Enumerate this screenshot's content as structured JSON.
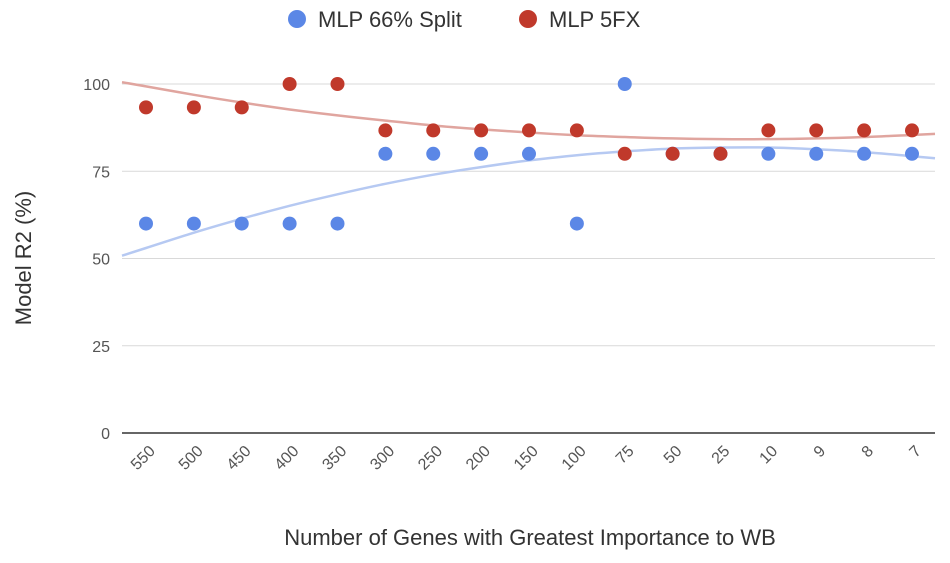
{
  "chart_data": {
    "type": "scatter",
    "title": "",
    "xlabel": "Number of Genes with Greatest Importance to WB",
    "ylabel": "Model R2 (%)",
    "ylim": [
      0,
      100
    ],
    "yticks": [
      0,
      25,
      50,
      75,
      100
    ],
    "legend_position": "top-center",
    "grid": true,
    "categories": [
      "550",
      "500",
      "450",
      "400",
      "350",
      "300",
      "250",
      "200",
      "150",
      "100",
      "75",
      "50",
      "25",
      "10",
      "9",
      "8",
      "7"
    ],
    "series": [
      {
        "name": "MLP 66% Split",
        "color": "#5b87e6",
        "trend_color": "#b6c9f2",
        "values": [
          60,
          60,
          60,
          60,
          60,
          80,
          80,
          80,
          80,
          60,
          100,
          80,
          80,
          80,
          80,
          80,
          80
        ],
        "trend": [
          53,
          57.4,
          61.4,
          65.1,
          68.4,
          71.4,
          74,
          76.2,
          78.1,
          79.6,
          80.7,
          81.5,
          81.8,
          81.8,
          81.3,
          80.5,
          79.3
        ]
      },
      {
        "name": "MLP 5FX",
        "color": "#c0392b",
        "trend_color": "#e0a59f",
        "values": [
          93.3,
          93.3,
          93.3,
          100,
          100,
          86.7,
          86.7,
          86.7,
          86.7,
          86.7,
          80,
          80,
          80,
          86.7,
          86.7,
          86.7,
          86.7
        ],
        "trend": [
          99.3,
          96.9,
          94.7,
          92.7,
          91,
          89.5,
          88.1,
          87,
          86.1,
          85.3,
          84.8,
          84.4,
          84.2,
          84.2,
          84.4,
          84.8,
          85.4
        ]
      }
    ]
  }
}
